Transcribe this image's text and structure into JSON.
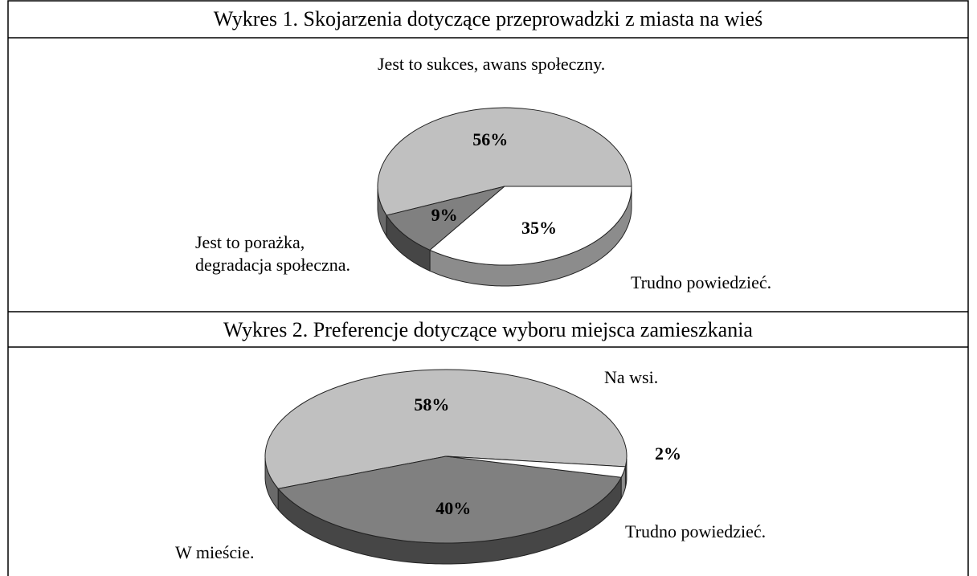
{
  "chart_data": [
    {
      "type": "pie",
      "title": "Wykres 1. Skojarzenia dotyczące przeprowadzki z miasta na wieś",
      "categories": [
        "Jest to sukces, awans społeczny.",
        "Jest to porażka,\ndegradacja społeczna.",
        "Trudno powiedzieć."
      ],
      "values": [
        56,
        9,
        35
      ],
      "value_labels": [
        "56%",
        "9%",
        "35%"
      ],
      "colors": [
        "#c0c0c0",
        "#808080",
        "#ffffff"
      ]
    },
    {
      "type": "pie",
      "title": "Wykres 2. Preferencje dotyczące wyboru miejsca zamieszkania",
      "categories": [
        "Na wsi.",
        "W mieście.",
        "Trudno powiedzieć."
      ],
      "values": [
        58,
        40,
        2
      ],
      "value_labels": [
        "58%",
        "40%",
        "2%"
      ],
      "colors": [
        "#c0c0c0",
        "#808080",
        "#ffffff"
      ]
    }
  ]
}
